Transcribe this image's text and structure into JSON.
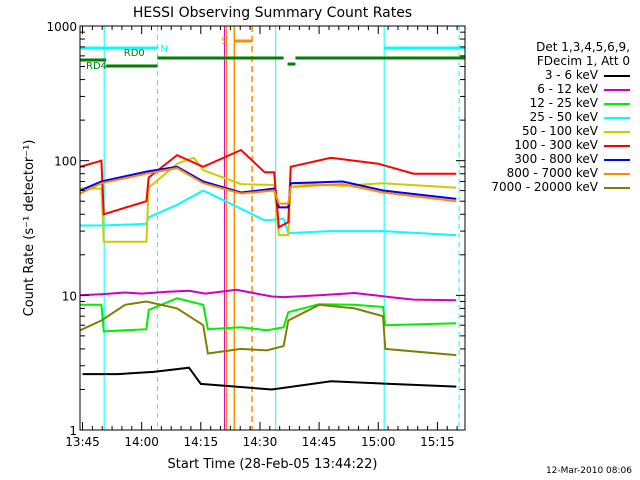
{
  "chart_data": {
    "type": "line",
    "title": "HESSI Observing Summary Count Rates",
    "xlabel": "Start Time (28-Feb-05 13:44:22)",
    "ylabel": "Count Rate (s⁻¹ detector⁻¹)",
    "x_range": [
      "13:44:22",
      "15:22:00"
    ],
    "x_ticks": [
      "13:45",
      "14:00",
      "14:15",
      "14:30",
      "14:45",
      "15:00",
      "15:15"
    ],
    "y_scale": "log",
    "ylim": [
      1,
      1000
    ],
    "y_ticks": [
      "1",
      "10",
      "100",
      "1000"
    ],
    "grid": false,
    "legend_position": "right",
    "legend_header": [
      "Det 1,3,4,5,6,9,",
      "FDecim 1, Att 0"
    ],
    "annotations": {
      "rd0": "RD0",
      "rd4": "RD4",
      "n": "N",
      "s": "S"
    },
    "series": [
      {
        "name": "3 - 6 keV",
        "color": "#000000",
        "values": [
          [
            13.75,
            2.6
          ],
          [
            13.9,
            2.6
          ],
          [
            14.05,
            2.7
          ],
          [
            14.2,
            2.9
          ],
          [
            14.25,
            2.2
          ],
          [
            14.55,
            2.0
          ],
          [
            14.8,
            2.3
          ],
          [
            15.05,
            2.2
          ],
          [
            15.33,
            2.1
          ]
        ]
      },
      {
        "name": "6 - 12 keV",
        "color": "#cc00cc",
        "values": [
          [
            13.74,
            10
          ],
          [
            13.83,
            10.2
          ],
          [
            13.93,
            10.5
          ],
          [
            14.0,
            10.3
          ],
          [
            14.1,
            10.6
          ],
          [
            14.2,
            10.8
          ],
          [
            14.27,
            10.3
          ],
          [
            14.4,
            11
          ],
          [
            14.55,
            9.8
          ],
          [
            14.6,
            9.7
          ],
          [
            14.75,
            10
          ],
          [
            14.9,
            10.4
          ],
          [
            15.05,
            9.7
          ],
          [
            15.15,
            9.3
          ],
          [
            15.33,
            9.2
          ]
        ]
      },
      {
        "name": "12 - 25 keV",
        "color": "#00ee00",
        "values": [
          [
            13.74,
            8.5
          ],
          [
            13.83,
            8.5
          ],
          [
            13.84,
            5.4
          ],
          [
            14.02,
            5.6
          ],
          [
            14.03,
            7.8
          ],
          [
            14.15,
            9.5
          ],
          [
            14.26,
            8.5
          ],
          [
            14.28,
            5.6
          ],
          [
            14.42,
            5.8
          ],
          [
            14.53,
            5.5
          ],
          [
            14.6,
            5.8
          ],
          [
            14.62,
            7.5
          ],
          [
            14.75,
            8.6
          ],
          [
            14.9,
            8.5
          ],
          [
            15.02,
            8.2
          ],
          [
            15.03,
            6.0
          ],
          [
            15.33,
            6.2
          ]
        ]
      },
      {
        "name": "25 - 50 keV",
        "color": "#00ffff",
        "values": [
          [
            13.74,
            33
          ],
          [
            13.83,
            33
          ],
          [
            13.84,
            33
          ],
          [
            14.02,
            34
          ],
          [
            14.03,
            38
          ],
          [
            14.15,
            47
          ],
          [
            14.26,
            60
          ],
          [
            14.42,
            44
          ],
          [
            14.52,
            36
          ],
          [
            14.6,
            37
          ],
          [
            14.62,
            29
          ],
          [
            14.8,
            30
          ],
          [
            15.02,
            30
          ],
          [
            15.33,
            28
          ]
        ]
      },
      {
        "name": "50 - 100 keV",
        "color": "#cccc00",
        "values": [
          [
            13.74,
            62
          ],
          [
            13.83,
            62
          ],
          [
            13.84,
            25
          ],
          [
            14.02,
            25
          ],
          [
            14.03,
            63
          ],
          [
            14.15,
            95
          ],
          [
            14.22,
            105
          ],
          [
            14.26,
            85
          ],
          [
            14.42,
            67
          ],
          [
            14.56,
            66
          ],
          [
            14.58,
            28
          ],
          [
            14.62,
            28
          ],
          [
            14.63,
            68
          ],
          [
            14.85,
            65
          ],
          [
            15.02,
            68
          ],
          [
            15.33,
            63
          ]
        ]
      },
      {
        "name": "100 - 300 keV",
        "color": "#ff0000",
        "values": [
          [
            13.74,
            90
          ],
          [
            13.83,
            100
          ],
          [
            13.84,
            40
          ],
          [
            14.02,
            50
          ],
          [
            14.03,
            75
          ],
          [
            14.15,
            110
          ],
          [
            14.26,
            90
          ],
          [
            14.42,
            120
          ],
          [
            14.52,
            82
          ],
          [
            14.56,
            82
          ],
          [
            14.58,
            32
          ],
          [
            14.62,
            35
          ],
          [
            14.63,
            90
          ],
          [
            14.8,
            105
          ],
          [
            15.0,
            95
          ],
          [
            15.15,
            80
          ],
          [
            15.33,
            80
          ]
        ]
      },
      {
        "name": "300 - 800 keV",
        "color": "#0000ff",
        "values": [
          [
            13.74,
            60
          ],
          [
            13.83,
            70
          ],
          [
            14.02,
            83
          ],
          [
            14.15,
            90
          ],
          [
            14.26,
            70
          ],
          [
            14.42,
            58
          ],
          [
            14.56,
            62
          ],
          [
            14.58,
            45
          ],
          [
            14.62,
            45
          ],
          [
            14.63,
            68
          ],
          [
            14.85,
            70
          ],
          [
            15.02,
            60
          ],
          [
            15.33,
            52
          ]
        ]
      },
      {
        "name": "800 - 7000 keV",
        "color": "#ff8c00",
        "values": [
          [
            13.74,
            57
          ],
          [
            13.83,
            68
          ],
          [
            14.02,
            80
          ],
          [
            14.15,
            88
          ],
          [
            14.26,
            68
          ],
          [
            14.42,
            57
          ],
          [
            14.56,
            60
          ],
          [
            14.58,
            48
          ],
          [
            14.62,
            48
          ],
          [
            14.63,
            64
          ],
          [
            14.85,
            67
          ],
          [
            15.02,
            58
          ],
          [
            15.33,
            50
          ]
        ]
      },
      {
        "name": "7000 - 20000 keV",
        "color": "#808000",
        "values": [
          [
            13.74,
            5.5
          ],
          [
            13.83,
            6.5
          ],
          [
            13.93,
            8.5
          ],
          [
            14.02,
            9
          ],
          [
            14.15,
            8
          ],
          [
            14.26,
            6
          ],
          [
            14.28,
            3.7
          ],
          [
            14.42,
            4.0
          ],
          [
            14.53,
            3.9
          ],
          [
            14.6,
            4.2
          ],
          [
            14.62,
            6.5
          ],
          [
            14.75,
            8.5
          ],
          [
            14.9,
            8.0
          ],
          [
            15.02,
            7.0
          ],
          [
            15.03,
            4.0
          ],
          [
            15.33,
            3.6
          ]
        ]
      }
    ]
  },
  "footer": {
    "timestamp": "12-Mar-2010 08:06"
  }
}
